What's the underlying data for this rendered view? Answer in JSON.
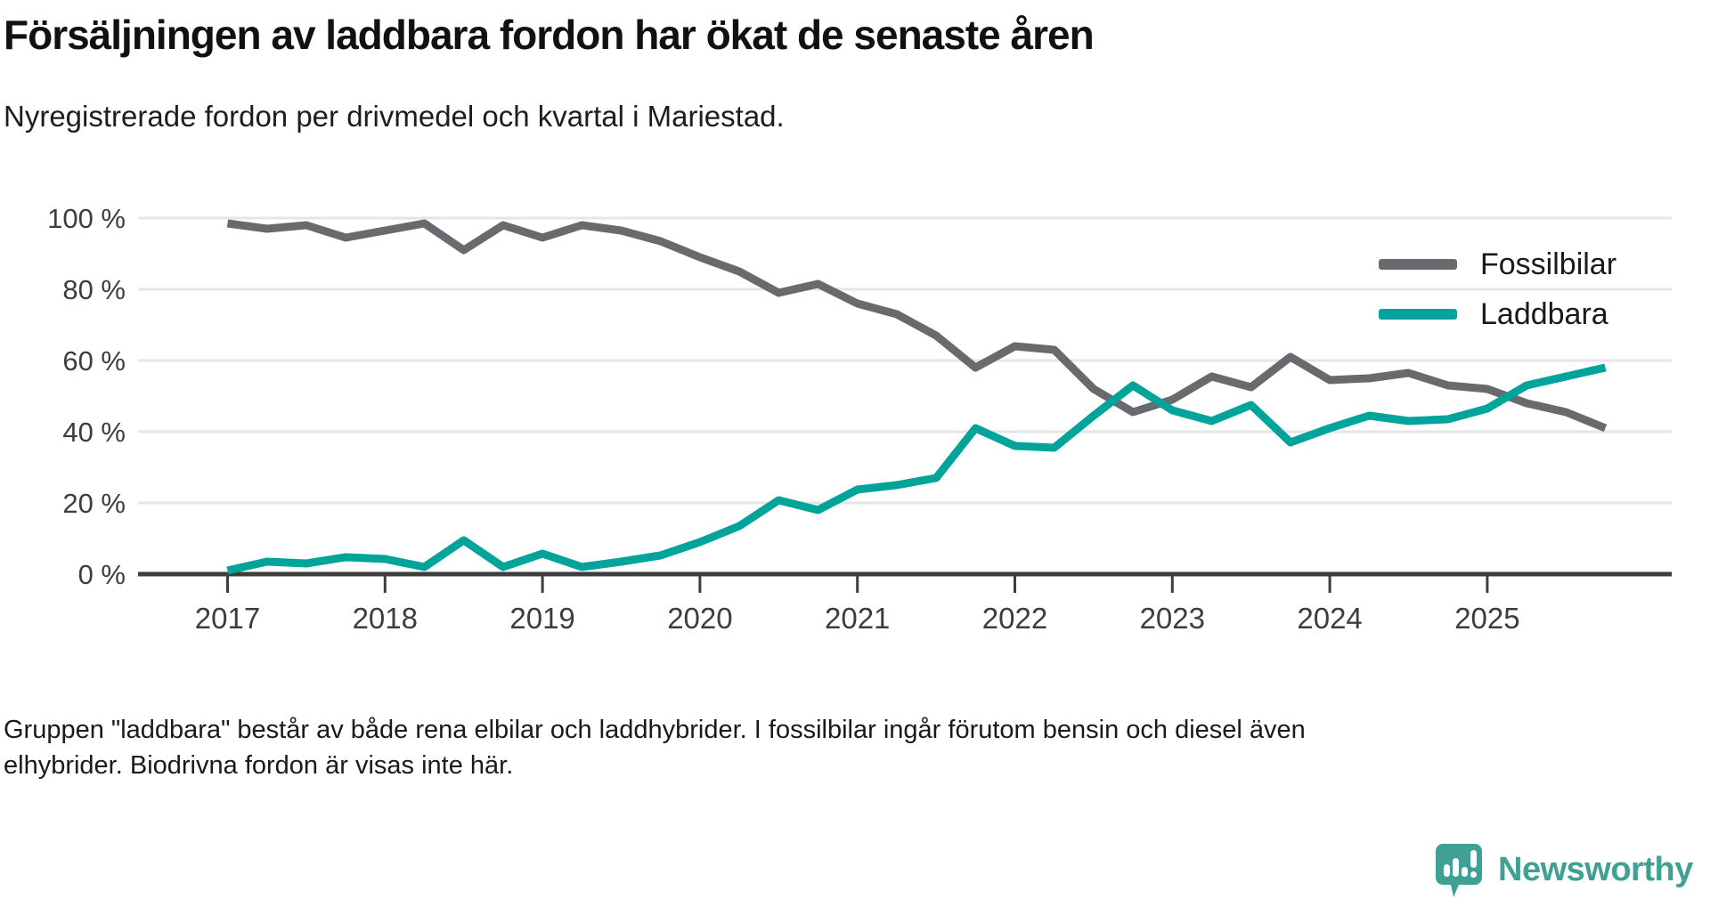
{
  "header": {
    "title": "Försäljningen av laddbara fordon har ökat de senaste åren",
    "subtitle": "Nyregistrerade fordon per drivmedel och kvartal i Mariestad."
  },
  "footer": {
    "note": "Gruppen \"laddbara\" består av både rena elbilar och laddhybrider. I fossilbilar ingår förutom bensin och diesel även elhybrider. Biodrivna fordon är visas inte här."
  },
  "logo": {
    "text": "Newsworthy",
    "color": "#3fa093"
  },
  "chart_data": {
    "type": "line",
    "title": "Nyregistrerade fordon per drivmedel och kvartal i Mariestad",
    "x_unit": "quarter",
    "x_tick_labels": [
      "2017",
      "2018",
      "2019",
      "2020",
      "2021",
      "2022",
      "2023",
      "2024",
      "2025"
    ],
    "y_tick_labels": [
      "100 %",
      "80 %",
      "60 %",
      "40 %",
      "20 %",
      "0 %"
    ],
    "y_tick_values": [
      100,
      80,
      60,
      40,
      20,
      0
    ],
    "ylim": [
      0,
      100
    ],
    "grid": "horizontal",
    "legend_position": "top-right-inside",
    "categories": [
      "2017Q1",
      "2017Q2",
      "2017Q3",
      "2017Q4",
      "2018Q1",
      "2018Q2",
      "2018Q3",
      "2018Q4",
      "2019Q1",
      "2019Q2",
      "2019Q3",
      "2019Q4",
      "2020Q1",
      "2020Q2",
      "2020Q3",
      "2020Q4",
      "2021Q1",
      "2021Q2",
      "2021Q3",
      "2021Q4",
      "2022Q1",
      "2022Q2",
      "2022Q3",
      "2022Q4",
      "2023Q1",
      "2023Q2",
      "2023Q3",
      "2023Q4",
      "2024Q1",
      "2024Q2",
      "2024Q3",
      "2024Q4",
      "2025Q1",
      "2025Q2",
      "2025Q3",
      "2025Q4"
    ],
    "series": [
      {
        "name": "Fossilbilar",
        "color": "#696a6e",
        "values": [
          98.5,
          97,
          98,
          94.5,
          96.5,
          98.5,
          91,
          98,
          94.5,
          98,
          96.5,
          93.5,
          89,
          85,
          79,
          81.5,
          76,
          73,
          67,
          58,
          64,
          63,
          52,
          45.5,
          49,
          55.5,
          52.5,
          61,
          54.5,
          55,
          56.5,
          53,
          52,
          48,
          45.5,
          41
        ]
      },
      {
        "name": "Laddbara",
        "color": "#00a49a",
        "values": [
          1,
          3.5,
          3,
          4.75,
          4.25,
          2,
          9.5,
          2,
          5.75,
          2,
          3.5,
          5.25,
          9,
          13.5,
          20.75,
          18,
          23.75,
          25,
          27,
          41,
          36,
          35.5,
          44.5,
          53,
          46,
          43,
          47.5,
          37,
          41,
          44.5,
          43,
          43.5,
          46.5,
          53,
          55.5,
          58
        ]
      }
    ]
  }
}
